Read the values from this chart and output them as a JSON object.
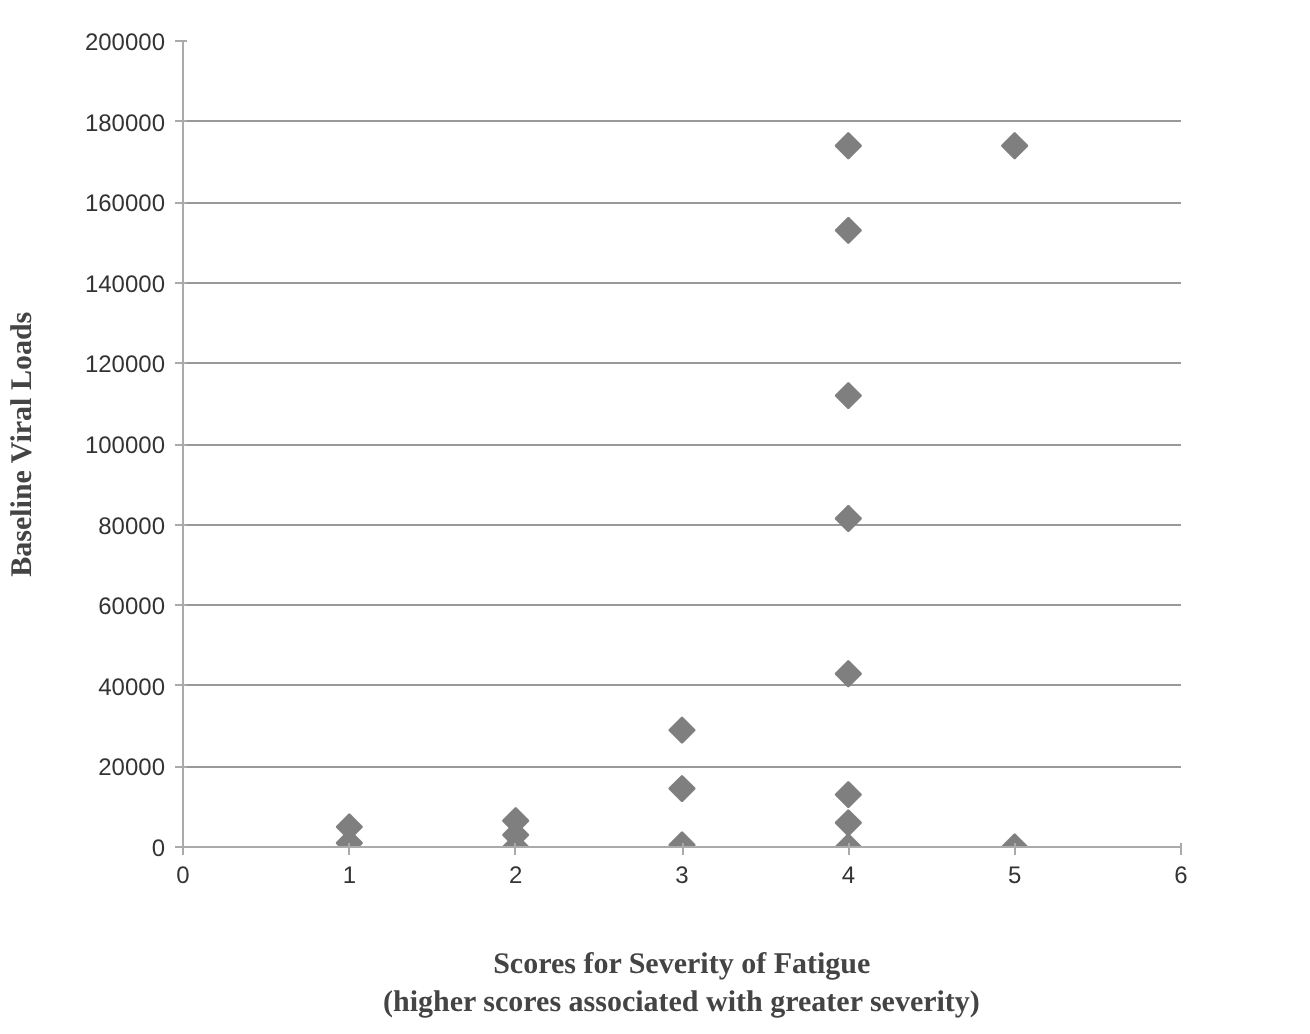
{
  "chart_data": {
    "type": "scatter",
    "xlabel": "Scores for Severity of Fatigue\n(higher scores associated with greater severity)",
    "ylabel": "Baseline Viral Loads",
    "x": [
      1,
      1,
      2,
      2,
      2,
      3,
      3,
      3,
      4,
      4,
      4,
      4,
      4,
      4,
      4,
      4,
      5,
      5
    ],
    "values": [
      5000,
      1000,
      6500,
      3000,
      0,
      29000,
      14500,
      500,
      174000,
      153000,
      112000,
      81500,
      43000,
      13000,
      6000,
      0,
      174000,
      0
    ],
    "color": "#7f7f7f",
    "marker": "diamond",
    "xlim": [
      0,
      6
    ],
    "xticks": [
      0,
      1,
      2,
      3,
      4,
      5,
      6
    ],
    "ylim": [
      0,
      200000
    ],
    "yticks": [
      0,
      20000,
      40000,
      60000,
      80000,
      100000,
      120000,
      140000,
      160000,
      180000,
      200000
    ],
    "grid": "y"
  }
}
